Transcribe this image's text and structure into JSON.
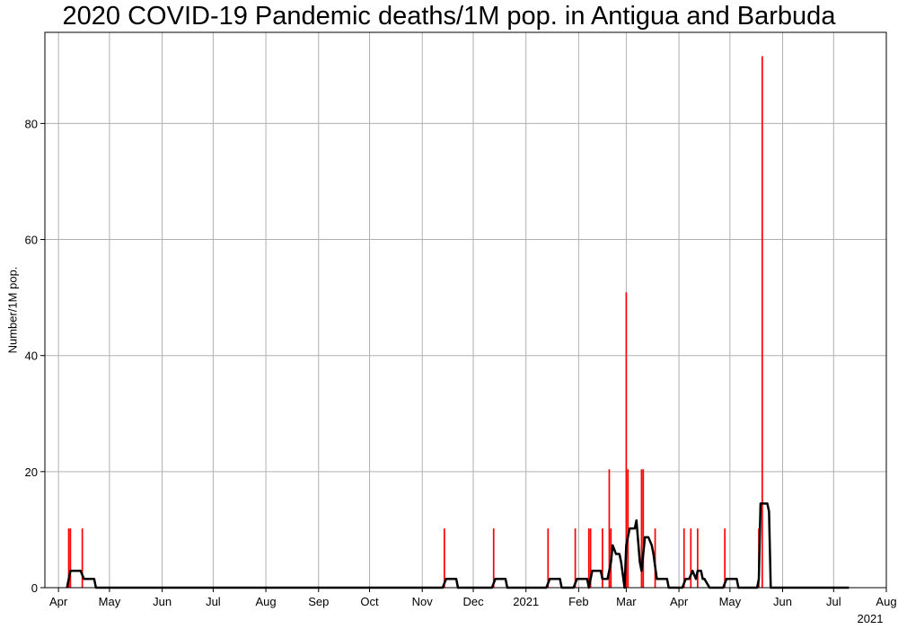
{
  "chart_data": {
    "type": "bar",
    "title": "2020 COVID-19 Pandemic deaths/1M pop. in Antigua and Barbuda",
    "xlabel": "",
    "ylabel": "Number/1M pop.",
    "x_axis": {
      "type": "date",
      "min": "2020-03-24",
      "max": "2021-08-01",
      "ticks": [
        {
          "date": "2020-04-01",
          "label": "Apr"
        },
        {
          "date": "2020-05-01",
          "label": "May"
        },
        {
          "date": "2020-06-01",
          "label": "Jun"
        },
        {
          "date": "2020-07-01",
          "label": "Jul"
        },
        {
          "date": "2020-08-01",
          "label": "Aug"
        },
        {
          "date": "2020-09-01",
          "label": "Sep"
        },
        {
          "date": "2020-10-01",
          "label": "Oct"
        },
        {
          "date": "2020-11-01",
          "label": "Nov"
        },
        {
          "date": "2020-12-01",
          "label": "Dec"
        },
        {
          "date": "2021-01-01",
          "label": "2021"
        },
        {
          "date": "2021-02-01",
          "label": "Feb"
        },
        {
          "date": "2021-03-01",
          "label": "Mar"
        },
        {
          "date": "2021-04-01",
          "label": "Apr"
        },
        {
          "date": "2021-05-01",
          "label": "May"
        },
        {
          "date": "2021-06-01",
          "label": "Jun"
        },
        {
          "date": "2021-07-01",
          "label": "Jul"
        },
        {
          "date": "2021-08-01",
          "label": "Aug"
        }
      ],
      "year_label": "2021"
    },
    "y_axis": {
      "min": 0,
      "max": 95.7,
      "ticks": [
        0,
        20,
        40,
        60,
        80
      ]
    },
    "grid": true,
    "series": [
      {
        "kind": "bar",
        "color": "#ff0000",
        "x": [
          "2020-04-07",
          "2020-04-08",
          "2020-04-15",
          "2020-11-14",
          "2020-12-13",
          "2021-01-14",
          "2021-01-30",
          "2021-02-07",
          "2021-02-08",
          "2021-02-15",
          "2021-02-19",
          "2021-02-20",
          "2021-03-01",
          "2021-03-02",
          "2021-03-10",
          "2021-03-11",
          "2021-03-18",
          "2021-04-04",
          "2021-04-08",
          "2021-04-12",
          "2021-04-28",
          "2021-05-18",
          "2021-05-20"
        ],
        "values": [
          10.2,
          10.2,
          10.2,
          10.2,
          10.2,
          10.2,
          10.2,
          10.2,
          10.2,
          10.2,
          20.4,
          10.2,
          50.9,
          20.4,
          20.4,
          20.4,
          10.2,
          10.2,
          10.2,
          10.2,
          10.2,
          10.2,
          91.6
        ]
      },
      {
        "kind": "line",
        "color": "#000000",
        "x": [
          "2020-04-06",
          "2020-04-08",
          "2020-04-14",
          "2020-04-16",
          "2020-04-22",
          "2020-04-23",
          "2020-11-13",
          "2020-11-15",
          "2020-11-21",
          "2020-11-22",
          "2020-12-12",
          "2020-12-14",
          "2020-12-20",
          "2020-12-21",
          "2021-01-13",
          "2021-01-15",
          "2021-01-21",
          "2021-01-22",
          "2021-01-29",
          "2021-01-31",
          "2021-02-06",
          "2021-02-07",
          "2021-02-09",
          "2021-02-14",
          "2021-02-15",
          "2021-02-18",
          "2021-02-20",
          "2021-02-21",
          "2021-02-23",
          "2021-02-25",
          "2021-02-26",
          "2021-02-28",
          "2021-03-01",
          "2021-03-03",
          "2021-03-06",
          "2021-03-07",
          "2021-03-09",
          "2021-03-10",
          "2021-03-12",
          "2021-03-14",
          "2021-03-16",
          "2021-03-17",
          "2021-03-19",
          "2021-03-25",
          "2021-03-26",
          "2021-04-03",
          "2021-04-05",
          "2021-04-07",
          "2021-04-09",
          "2021-04-11",
          "2021-04-12",
          "2021-04-13",
          "2021-04-14",
          "2021-04-15",
          "2021-04-16",
          "2021-04-19",
          "2021-04-20",
          "2021-04-27",
          "2021-04-29",
          "2021-05-05",
          "2021-05-06",
          "2021-05-17",
          "2021-05-18",
          "2021-05-19",
          "2021-05-23",
          "2021-05-24",
          "2021-05-25",
          "2021-07-10"
        ],
        "values": [
          0,
          2.9,
          2.9,
          1.5,
          1.5,
          0,
          0,
          1.5,
          1.5,
          0,
          0,
          1.5,
          1.5,
          0,
          0,
          1.5,
          1.5,
          0,
          0,
          1.5,
          1.5,
          0,
          2.9,
          2.9,
          1.5,
          1.5,
          4.4,
          7.3,
          5.8,
          5.8,
          4.4,
          0,
          7.3,
          10.2,
          10.2,
          11.6,
          4.4,
          2.9,
          8.7,
          8.7,
          7.3,
          5.8,
          1.5,
          1.5,
          0,
          0,
          1.5,
          1.5,
          2.9,
          1.5,
          2.9,
          2.9,
          2.9,
          1.5,
          1.5,
          0,
          0,
          0,
          1.5,
          1.5,
          0,
          0,
          1.5,
          14.5,
          14.5,
          13.1,
          0,
          0
        ]
      }
    ]
  }
}
